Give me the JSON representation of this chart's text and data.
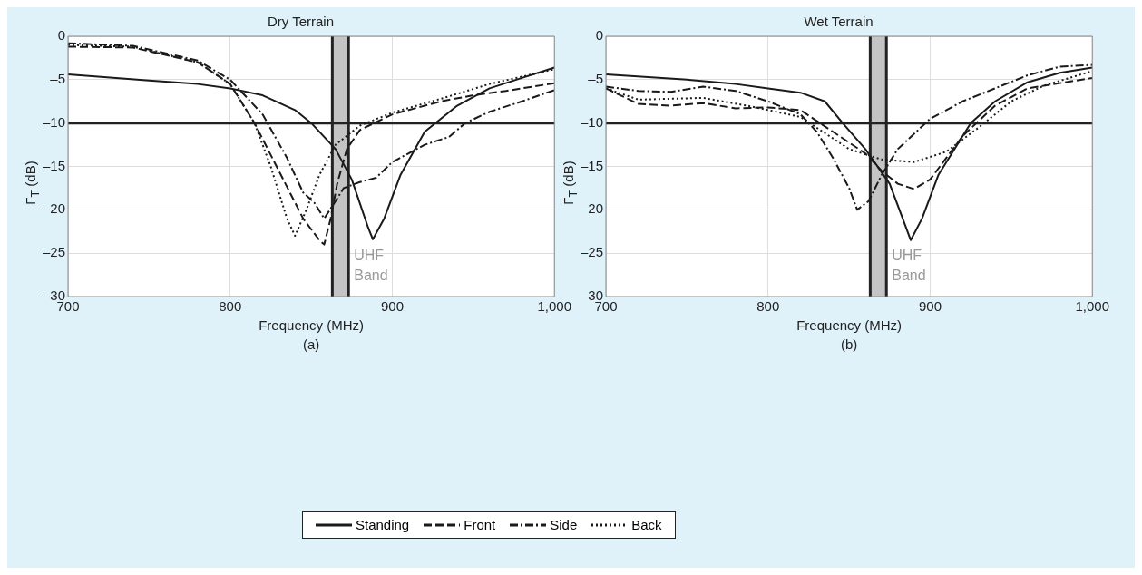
{
  "chart_data": [
    {
      "type": "line",
      "title": "Dry Terrain",
      "xlabel": "Frequency (MHz)",
      "ylabel": "Γ$_{T}$ (dB)",
      "annotations": [
        "(a)"
      ],
      "xlim": [
        700,
        1000
      ],
      "xticks": [
        700,
        800,
        900,
        {
          "value": 1000,
          "label": "1,000"
        }
      ],
      "ylim": [
        -30,
        0
      ],
      "yticks": [
        {
          "value": -30,
          "label": "–30"
        },
        {
          "value": -25,
          "label": "–25"
        },
        {
          "value": -20,
          "label": "–20"
        },
        {
          "value": -15,
          "label": "–15"
        },
        {
          "value": -10,
          "label": "–10"
        },
        {
          "value": -5,
          "label": "–5"
        },
        0
      ],
      "grid": true,
      "legend": "bottom",
      "marker": "none",
      "ref_lines": [
        {
          "axis": "y",
          "value": -10,
          "color": "#222222"
        },
        {
          "axis": "x",
          "value": 863,
          "color": "#222222"
        },
        {
          "axis": "x",
          "value": 873,
          "color": "#222222"
        }
      ],
      "bands": [
        {
          "axis": "x",
          "from": 863,
          "to": 873,
          "label": "UHF Band",
          "color": "#c4c4c4"
        }
      ],
      "series": [
        {
          "name": "Standing",
          "color": "#1a1a1a",
          "line_style": "solid",
          "x": [
            700,
            750,
            780,
            800,
            820,
            840,
            850,
            865,
            875,
            885,
            888,
            895,
            905,
            920,
            940,
            960,
            980,
            1000
          ],
          "values": [
            -4.4,
            -5.1,
            -5.5,
            -6,
            -6.8,
            -8.5,
            -10,
            -13,
            -16.5,
            -22,
            -23.4,
            -21,
            -16,
            -11,
            -8,
            -6,
            -4.8,
            -3.6
          ]
        },
        {
          "name": "Front",
          "color": "#1a1a1a",
          "line_style": "dashed",
          "x": [
            700,
            740,
            780,
            800,
            815,
            830,
            845,
            855,
            858,
            862,
            866,
            872,
            880,
            900,
            930,
            950,
            970,
            1000
          ],
          "values": [
            -1.2,
            -1.3,
            -3,
            -5.5,
            -10,
            -15.5,
            -21,
            -23.5,
            -24,
            -21,
            -17,
            -13,
            -10.8,
            -9,
            -7.5,
            -6.8,
            -6.3,
            -5.4
          ]
        },
        {
          "name": "Side",
          "color": "#1a1a1a",
          "line_style": "dashdot",
          "x": [
            700,
            740,
            780,
            800,
            820,
            835,
            845,
            852,
            858,
            865,
            870,
            880,
            890,
            900,
            920,
            935,
            945,
            960,
            980,
            1000
          ],
          "values": [
            -0.8,
            -1.1,
            -2.8,
            -5,
            -9,
            -14,
            -18,
            -19.2,
            -21,
            -19,
            -17.5,
            -16.8,
            -16.3,
            -14.5,
            -12.5,
            -11.6,
            -10,
            -8.7,
            -7.5,
            -6.2
          ]
        },
        {
          "name": "Back",
          "color": "#1a1a1a",
          "line_style": "dotted",
          "x": [
            700,
            740,
            780,
            800,
            815,
            825,
            835,
            840,
            847,
            855,
            865,
            880,
            900,
            930,
            960,
            1000
          ],
          "values": [
            -1,
            -1.2,
            -3,
            -5.5,
            -10,
            -15,
            -21,
            -23,
            -20,
            -16,
            -12.5,
            -10.3,
            -8.8,
            -7.2,
            -5.5,
            -3.8
          ]
        }
      ]
    },
    {
      "type": "line",
      "title": "Wet Terrain",
      "xlabel": "Frequency (MHz)",
      "ylabel": "Γ$_{T}$ (dB)",
      "annotations": [
        "(b)"
      ],
      "xlim": [
        700,
        1000
      ],
      "xticks": [
        700,
        800,
        900,
        {
          "value": 1000,
          "label": "1,000"
        }
      ],
      "ylim": [
        -30,
        0
      ],
      "yticks": [
        {
          "value": -30,
          "label": "–30"
        },
        {
          "value": -25,
          "label": "–25"
        },
        {
          "value": -20,
          "label": "–20"
        },
        {
          "value": -15,
          "label": "–15"
        },
        {
          "value": -10,
          "label": "–10"
        },
        {
          "value": -5,
          "label": "–5"
        },
        0
      ],
      "grid": true,
      "legend": "bottom",
      "marker": "none",
      "ref_lines": [
        {
          "axis": "y",
          "value": -10,
          "color": "#222222"
        },
        {
          "axis": "x",
          "value": 863,
          "color": "#222222"
        },
        {
          "axis": "x",
          "value": 873,
          "color": "#222222"
        }
      ],
      "bands": [
        {
          "axis": "x",
          "from": 863,
          "to": 873,
          "label": "UHF Band",
          "color": "#c4c4c4"
        }
      ],
      "series": [
        {
          "name": "Standing",
          "color": "#1a1a1a",
          "line_style": "solid",
          "x": [
            700,
            750,
            780,
            800,
            820,
            835,
            846,
            860,
            875,
            885,
            888,
            895,
            905,
            925,
            940,
            960,
            980,
            1000
          ],
          "values": [
            -4.4,
            -5,
            -5.5,
            -6,
            -6.5,
            -7.5,
            -10,
            -13,
            -17,
            -22,
            -23.5,
            -21,
            -16,
            -10,
            -7.5,
            -5.3,
            -4.2,
            -3.6
          ]
        },
        {
          "name": "Front",
          "color": "#1a1a1a",
          "line_style": "dashed",
          "x": [
            700,
            720,
            740,
            760,
            780,
            800,
            820,
            840,
            860,
            870,
            880,
            890,
            900,
            920,
            940,
            960,
            1000
          ],
          "values": [
            -6,
            -7.8,
            -8,
            -7.7,
            -8.3,
            -8.2,
            -8.5,
            -11,
            -13.5,
            -15.5,
            -17,
            -17.6,
            -16.5,
            -11.5,
            -8,
            -6,
            -4.8
          ]
        },
        {
          "name": "Side",
          "color": "#1a1a1a",
          "line_style": "dashdot",
          "x": [
            700,
            720,
            740,
            760,
            780,
            800,
            820,
            830,
            840,
            850,
            855,
            862,
            870,
            880,
            900,
            920,
            940,
            960,
            980,
            1000
          ],
          "values": [
            -5.8,
            -6.3,
            -6.4,
            -5.8,
            -6.3,
            -7.5,
            -9,
            -11,
            -14,
            -17.5,
            -20,
            -19,
            -16,
            -13,
            -9.5,
            -7.5,
            -6,
            -4.5,
            -3.5,
            -3.3
          ]
        },
        {
          "name": "Back",
          "color": "#1a1a1a",
          "line_style": "dotted",
          "x": [
            700,
            720,
            760,
            790,
            820,
            850,
            870,
            890,
            910,
            930,
            950,
            970,
            1000
          ],
          "values": [
            -6,
            -7.3,
            -7.1,
            -8.1,
            -9.3,
            -13,
            -14.2,
            -14.5,
            -13.3,
            -10.5,
            -7.5,
            -5.7,
            -4
          ]
        }
      ]
    }
  ]
}
